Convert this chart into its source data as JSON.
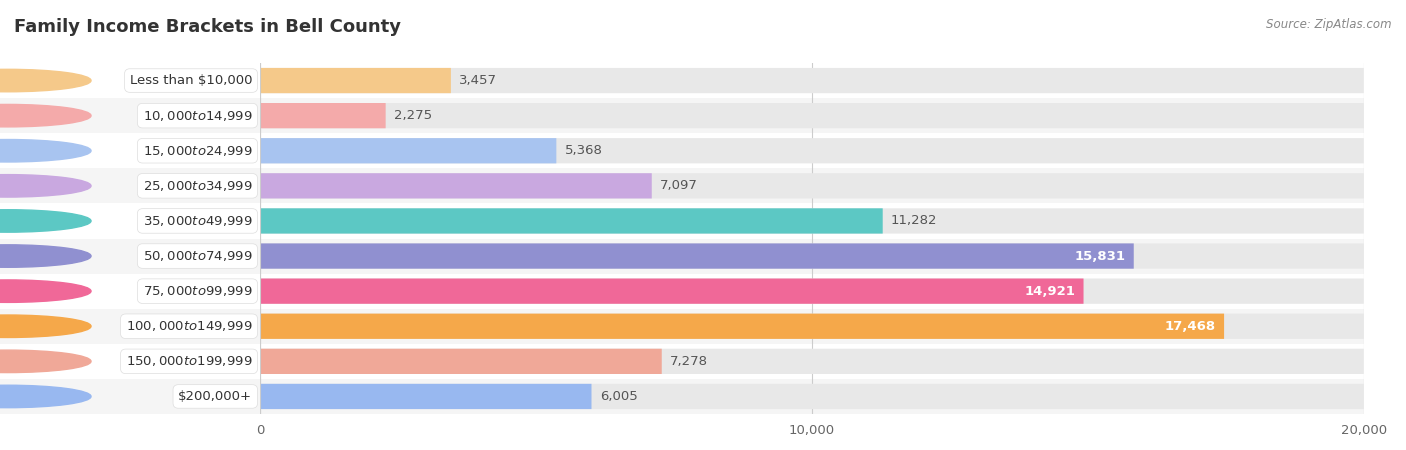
{
  "title": "Family Income Brackets in Bell County",
  "source": "Source: ZipAtlas.com",
  "categories": [
    "Less than $10,000",
    "$10,000 to $14,999",
    "$15,000 to $24,999",
    "$25,000 to $34,999",
    "$35,000 to $49,999",
    "$50,000 to $74,999",
    "$75,000 to $99,999",
    "$100,000 to $149,999",
    "$150,000 to $199,999",
    "$200,000+"
  ],
  "values": [
    3457,
    2275,
    5368,
    7097,
    11282,
    15831,
    14921,
    17468,
    7278,
    6005
  ],
  "bar_colors": [
    "#F5C98A",
    "#F4AAAA",
    "#A8C4F0",
    "#C9A8E0",
    "#5CC8C4",
    "#9090D0",
    "#F06898",
    "#F5A84A",
    "#F0A898",
    "#98B8F0"
  ],
  "value_inside_color": "#ffffff",
  "value_outside_color": "#555555",
  "inside_threshold": 0.62,
  "xlim": [
    0,
    20000
  ],
  "xticks": [
    0,
    10000,
    20000
  ],
  "xticklabels": [
    "0",
    "10,000",
    "20,000"
  ],
  "bar_bg_color": "#e8e8e8",
  "row_colors": [
    "#ffffff",
    "#f5f5f5"
  ],
  "title_fontsize": 13,
  "label_fontsize": 9.5,
  "value_fontsize": 9.5
}
